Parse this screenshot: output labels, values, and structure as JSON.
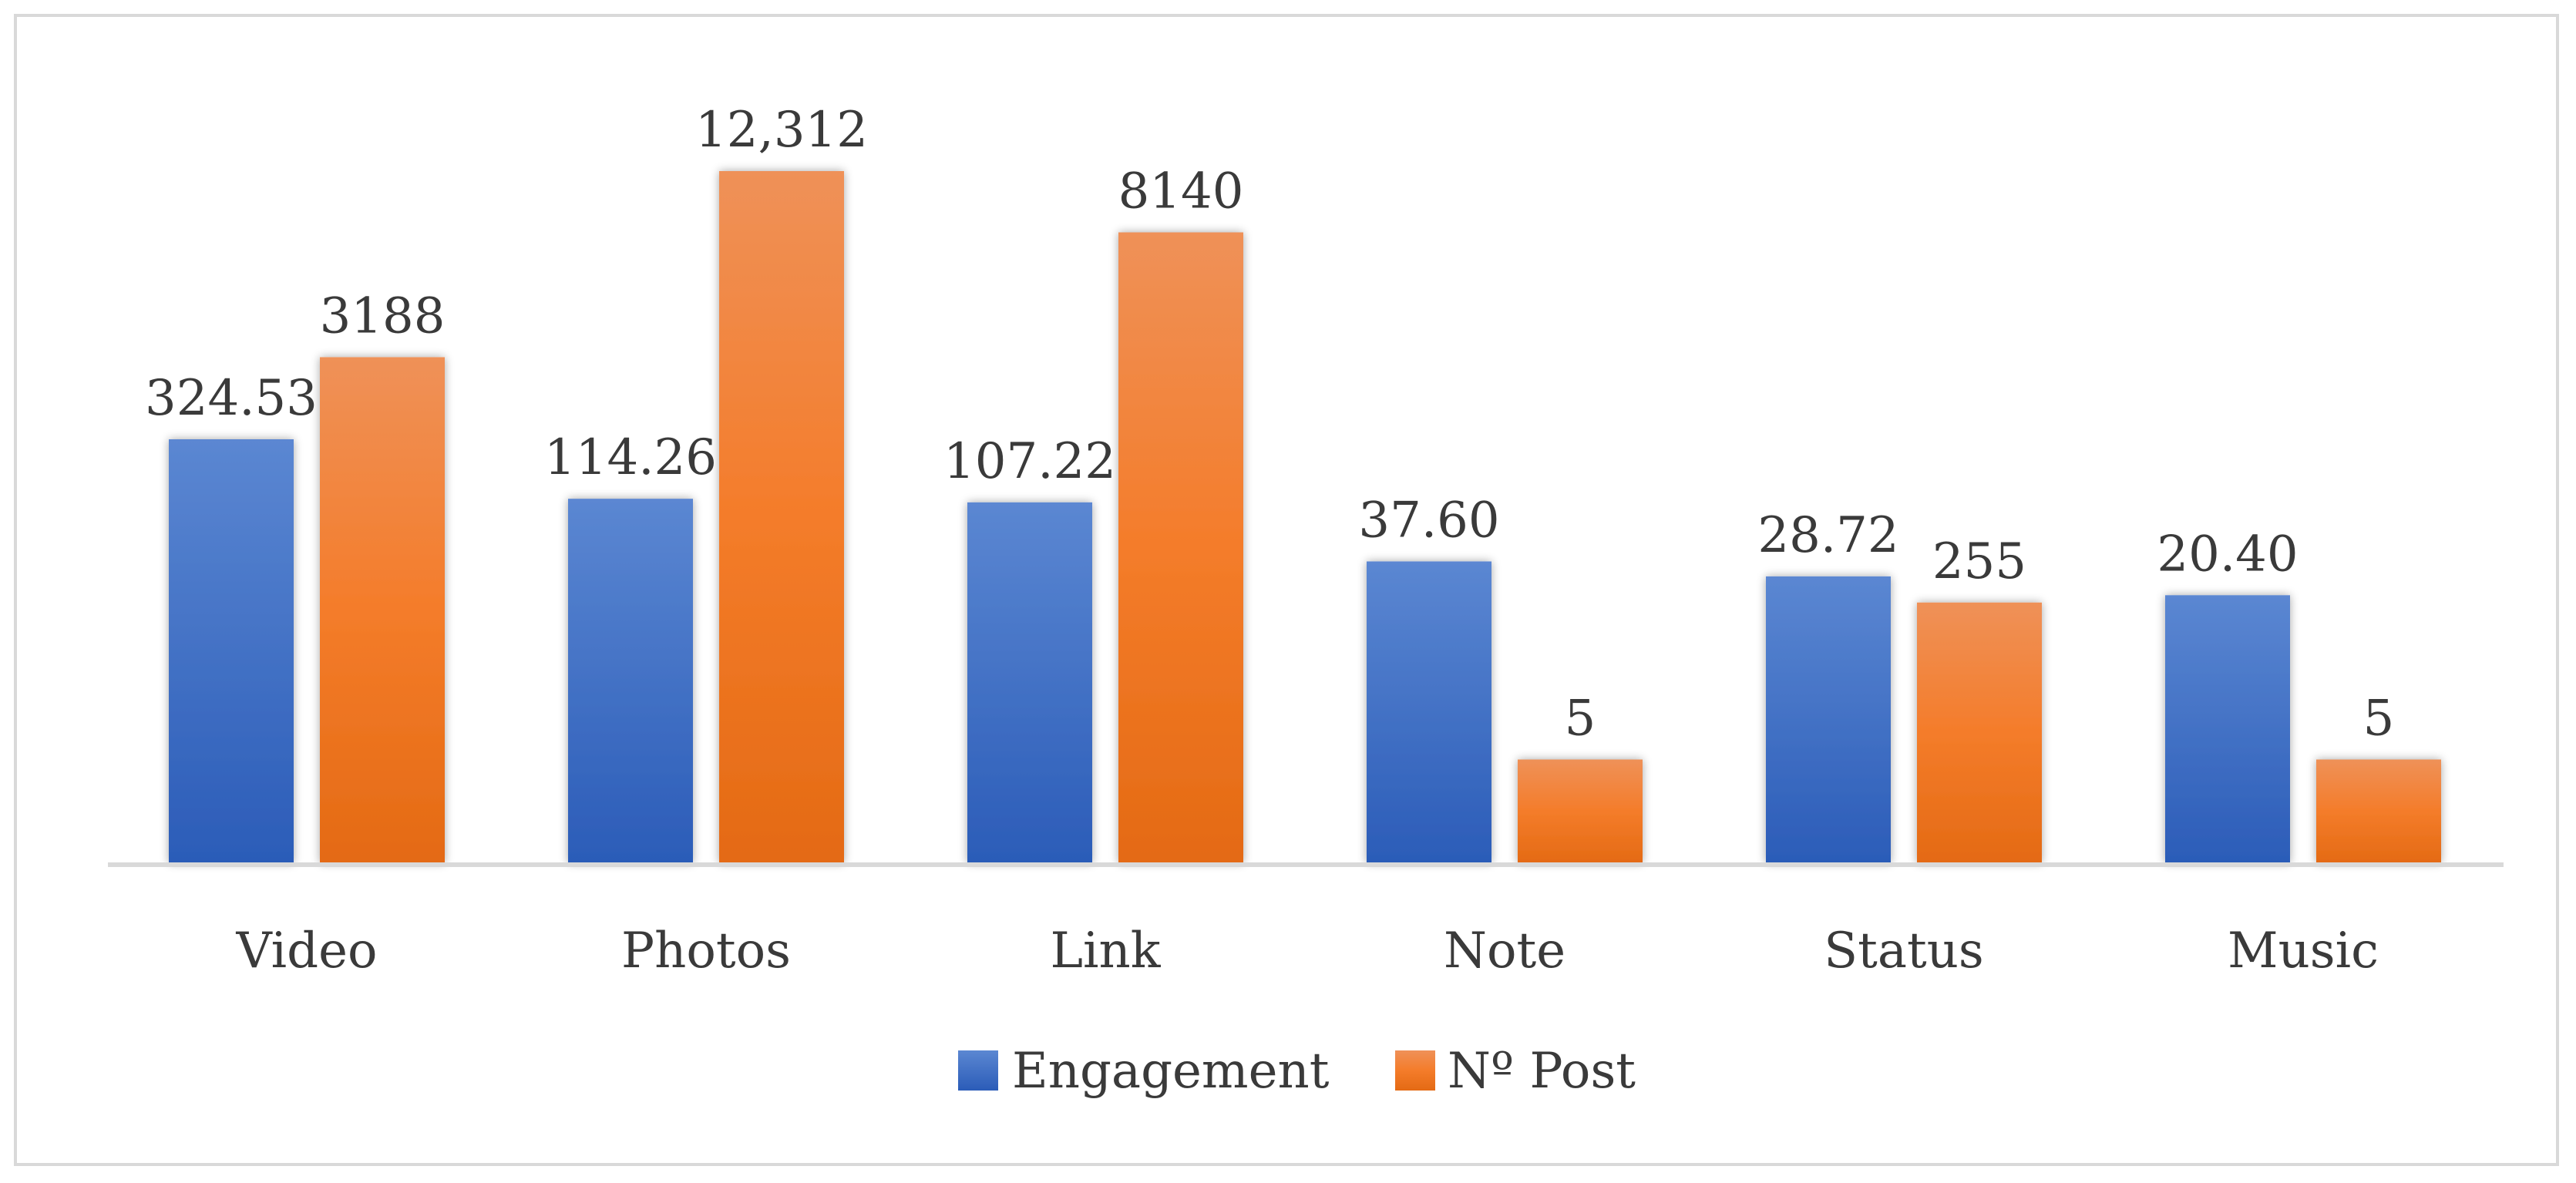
{
  "chart_data": {
    "type": "bar",
    "title": "",
    "xlabel": "",
    "ylabel": "",
    "categories": [
      "Video",
      "Photos",
      "Link",
      "Note",
      "Status",
      "Music"
    ],
    "series": [
      {
        "name": "Engagement",
        "values": [
          324.53,
          114.26,
          107.22,
          37.6,
          28.72,
          20.4
        ],
        "labels": [
          "324.53",
          "114.26",
          "107.22",
          "37.60",
          "28.72",
          "20.40"
        ],
        "color": "#4472c4"
      },
      {
        "name": "Nº Post",
        "values": [
          3188,
          12312,
          8140,
          5,
          255,
          5
        ],
        "labels": [
          "3188",
          "12,312",
          "8140",
          "5",
          "255",
          "5"
        ],
        "color": "#ed7d31"
      }
    ],
    "legend_position": "bottom",
    "grid": false,
    "axes": "hidden (bar heights not to a shared scale)"
  }
}
